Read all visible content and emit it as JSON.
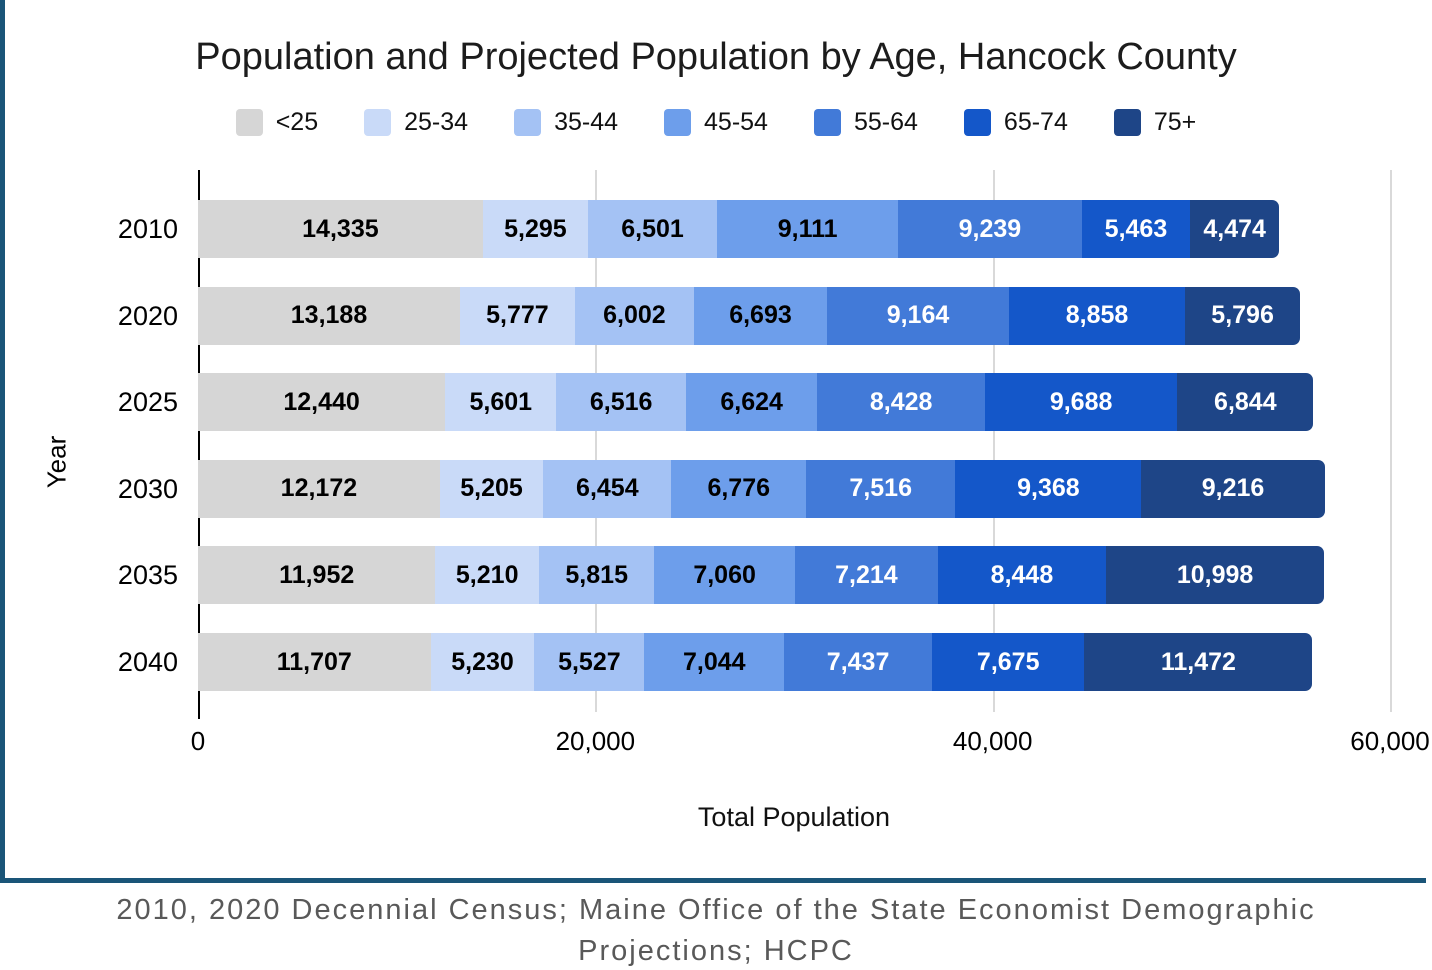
{
  "chart_data": {
    "type": "bar",
    "orientation": "horizontal",
    "stacked": true,
    "title": "Population and Projected Population by Age, Hancock County",
    "xlabel": "Total Population",
    "ylabel": "Year",
    "xlim": [
      0,
      60000
    ],
    "xticks": [
      0,
      20000,
      40000,
      60000
    ],
    "xtick_labels": [
      "0",
      "20,000",
      "40,000",
      "60,000"
    ],
    "legend_position": "top",
    "grid": "vertical",
    "categories": [
      "2010",
      "2020",
      "2025",
      "2030",
      "2035",
      "2040"
    ],
    "series": [
      {
        "name": "<25",
        "color": "#d6d6d6",
        "label_color": "#000000",
        "values": [
          14335,
          13188,
          12440,
          12172,
          11952,
          11707
        ]
      },
      {
        "name": "25-34",
        "color": "#c9daf8",
        "label_color": "#000000",
        "values": [
          5295,
          5777,
          5601,
          5205,
          5210,
          5230
        ]
      },
      {
        "name": "35-44",
        "color": "#a4c2f4",
        "label_color": "#000000",
        "values": [
          6501,
          6002,
          6516,
          6454,
          5815,
          5527
        ]
      },
      {
        "name": "45-54",
        "color": "#6d9eeb",
        "label_color": "#000000",
        "values": [
          9111,
          6693,
          6624,
          6776,
          7060,
          7044
        ]
      },
      {
        "name": "55-64",
        "color": "#427ad8",
        "label_color": "#ffffff",
        "values": [
          9239,
          9164,
          8428,
          7516,
          7214,
          7437
        ]
      },
      {
        "name": "65-74",
        "color": "#1457c9",
        "label_color": "#ffffff",
        "values": [
          5463,
          8858,
          9688,
          9368,
          8448,
          7675
        ]
      },
      {
        "name": "75+",
        "color": "#1e4587",
        "label_color": "#ffffff",
        "values": [
          4474,
          5796,
          6844,
          9216,
          10998,
          11472
        ]
      }
    ]
  },
  "footer": {
    "lines": [
      "2010, 2020 Decennial Census; Maine Office of the State Economist Demographic",
      "Projections; HCPC"
    ]
  },
  "colors": {
    "accent_border": "#1a5578",
    "axis_line": "#000000",
    "gridline": "#d9d9d9",
    "title_text": "#1c1c1c",
    "footer_text": "#595959"
  }
}
